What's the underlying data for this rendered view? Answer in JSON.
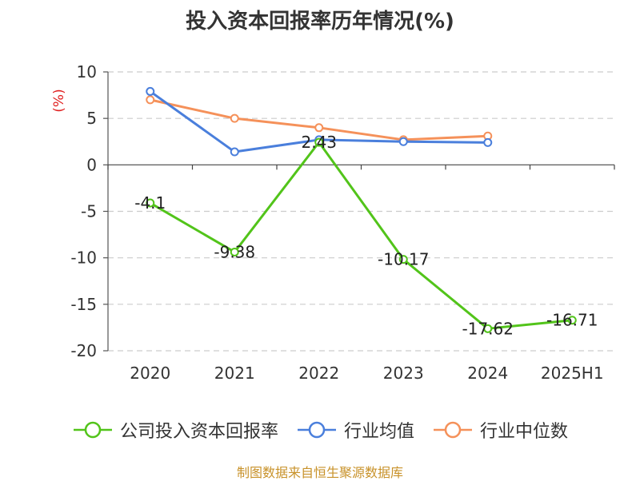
{
  "chart_data": {
    "type": "line",
    "title": "投入资本回报率历年情况(%)",
    "ylabel": "(%)",
    "xlabel": "",
    "categories": [
      "2020",
      "2021",
      "2022",
      "2023",
      "2024",
      "2025H1"
    ],
    "ylim": [
      -20,
      10
    ],
    "yticks": [
      10,
      5,
      0,
      -5,
      -10,
      -15,
      -20
    ],
    "grid": true,
    "legend_position": "bottom",
    "series": [
      {
        "name": "公司投入资本回报率",
        "color": "#52c41a",
        "values": [
          -4.1,
          -9.38,
          2.43,
          -10.17,
          -17.62,
          -16.71
        ],
        "labels": [
          "-4.1",
          "-9.38",
          "2.43",
          "-10.17",
          "-17.62",
          "-16.71"
        ]
      },
      {
        "name": "行业均值",
        "color": "#4a7fdc",
        "values": [
          7.9,
          1.4,
          2.7,
          2.5,
          2.4,
          null
        ]
      },
      {
        "name": "行业中位数",
        "color": "#f5915a",
        "values": [
          7.0,
          5.0,
          4.0,
          2.7,
          3.1,
          null
        ]
      }
    ]
  },
  "source": "制图数据来自恒生聚源数据库"
}
